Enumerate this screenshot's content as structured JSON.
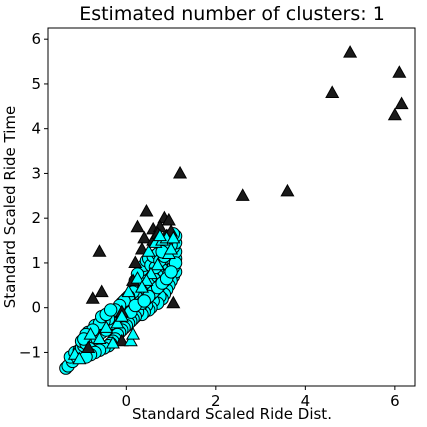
{
  "chart_data": {
    "type": "scatter",
    "title": "Estimated number of clusters: 1",
    "xlabel": "Standard Scaled Ride Dist.",
    "ylabel": "Standard Scaled Ride Time",
    "xlim": [
      -1.75,
      6.45
    ],
    "ylim": [
      -1.75,
      6.25
    ],
    "x_ticks": [
      0,
      2,
      4,
      6
    ],
    "y_ticks": [
      -1,
      0,
      1,
      2,
      3,
      4,
      5,
      6
    ],
    "grid": false,
    "colors": {
      "cluster": "#00ffff",
      "outlier": "#1a1a1a",
      "edge": "#000000"
    },
    "series": [
      {
        "marker": "circle",
        "points": [
          [
            -1.35,
            -1.35
          ],
          [
            -1.3,
            -1.3
          ],
          [
            -1.2,
            -1.2
          ],
          [
            -1.25,
            -1.1
          ],
          [
            -1.1,
            -1.1
          ],
          [
            -1.15,
            -1.0
          ],
          [
            -1.05,
            -0.95
          ],
          [
            -1.0,
            -0.9
          ],
          [
            -0.95,
            -0.85
          ],
          [
            -1.0,
            -0.75
          ],
          [
            -0.9,
            -0.8
          ],
          [
            -0.85,
            -0.7
          ],
          [
            -0.8,
            -0.75
          ],
          [
            -0.75,
            -0.65
          ],
          [
            -0.7,
            -0.6
          ],
          [
            -0.85,
            -0.55
          ],
          [
            -0.65,
            -0.7
          ],
          [
            -0.6,
            -0.5
          ],
          [
            -0.55,
            -0.55
          ],
          [
            -0.5,
            -0.45
          ],
          [
            -0.45,
            -0.5
          ],
          [
            -0.7,
            -0.4
          ],
          [
            -0.4,
            -0.4
          ],
          [
            -0.35,
            -0.3
          ],
          [
            -0.3,
            -0.35
          ],
          [
            -0.25,
            -0.2
          ],
          [
            -0.2,
            -0.25
          ],
          [
            -0.3,
            -0.1
          ],
          [
            -0.15,
            -0.1
          ],
          [
            -0.1,
            -0.15
          ],
          [
            -0.05,
            0.0
          ],
          [
            0.0,
            -0.05
          ],
          [
            -0.1,
            0.1
          ],
          [
            0.05,
            0.05
          ],
          [
            0.1,
            0.1
          ],
          [
            0.0,
            0.2
          ],
          [
            0.15,
            0.15
          ],
          [
            0.2,
            0.25
          ],
          [
            0.1,
            0.3
          ],
          [
            0.25,
            0.2
          ],
          [
            0.3,
            0.3
          ],
          [
            0.2,
            0.4
          ],
          [
            0.35,
            0.35
          ],
          [
            0.4,
            0.45
          ],
          [
            0.3,
            0.5
          ],
          [
            0.45,
            0.4
          ],
          [
            0.5,
            0.5
          ],
          [
            0.4,
            0.6
          ],
          [
            0.55,
            0.55
          ],
          [
            0.6,
            0.65
          ],
          [
            0.5,
            0.7
          ],
          [
            0.65,
            0.6
          ],
          [
            0.7,
            0.7
          ],
          [
            0.6,
            0.8
          ],
          [
            0.75,
            0.75
          ],
          [
            0.8,
            0.85
          ],
          [
            0.7,
            0.9
          ],
          [
            0.85,
            0.8
          ],
          [
            0.9,
            0.9
          ],
          [
            0.8,
            1.0
          ],
          [
            0.95,
            0.95
          ],
          [
            1.0,
            1.05
          ],
          [
            0.9,
            1.1
          ],
          [
            1.05,
            1.0
          ],
          [
            1.1,
            1.1
          ],
          [
            1.0,
            1.2
          ],
          [
            1.1,
            1.25
          ],
          [
            1.05,
            1.35
          ],
          [
            1.1,
            1.45
          ],
          [
            1.0,
            1.5
          ],
          [
            1.1,
            1.6
          ],
          [
            1.05,
            0.7
          ],
          [
            1.1,
            0.8
          ],
          [
            1.0,
            0.6
          ],
          [
            0.95,
            0.5
          ],
          [
            0.9,
            0.4
          ],
          [
            0.85,
            0.3
          ],
          [
            0.8,
            0.2
          ],
          [
            0.75,
            0.25
          ],
          [
            0.7,
            0.1
          ],
          [
            0.6,
            0.15
          ],
          [
            0.55,
            0.0
          ],
          [
            0.5,
            -0.05
          ],
          [
            0.45,
            0.05
          ],
          [
            0.4,
            -0.1
          ],
          [
            0.3,
            0.0
          ],
          [
            0.35,
            -0.15
          ],
          [
            0.25,
            -0.1
          ],
          [
            0.2,
            -0.2
          ],
          [
            0.15,
            -0.25
          ],
          [
            0.1,
            -0.3
          ],
          [
            0.05,
            -0.35
          ],
          [
            0.0,
            -0.4
          ],
          [
            -0.05,
            -0.45
          ],
          [
            -0.1,
            -0.5
          ],
          [
            -0.15,
            -0.55
          ],
          [
            -0.2,
            -0.6
          ],
          [
            -0.25,
            -0.7
          ],
          [
            -0.3,
            -0.75
          ],
          [
            -0.35,
            -0.8
          ],
          [
            -0.4,
            -0.85
          ],
          [
            -0.5,
            -0.9
          ],
          [
            -0.6,
            -0.95
          ],
          [
            -0.7,
            -1.0
          ],
          [
            -0.8,
            -1.05
          ],
          [
            -0.9,
            -1.1
          ],
          [
            0.3,
            0.7
          ],
          [
            0.35,
            0.85
          ],
          [
            0.4,
            0.95
          ],
          [
            0.45,
            1.05
          ],
          [
            0.3,
            0.55
          ],
          [
            0.2,
            0.6
          ],
          [
            0.25,
            0.75
          ],
          [
            0.5,
            1.1
          ],
          [
            0.55,
            0.95
          ],
          [
            0.65,
            0.9
          ],
          [
            0.6,
            1.15
          ],
          [
            0.7,
            1.2
          ],
          [
            0.75,
            1.05
          ],
          [
            0.85,
            1.15
          ],
          [
            0.9,
            1.25
          ],
          [
            0.95,
            1.3
          ],
          [
            1.0,
            1.4
          ],
          [
            0.95,
            1.6
          ],
          [
            1.05,
            1.65
          ],
          [
            0.9,
            1.45
          ],
          [
            0.85,
            1.35
          ],
          [
            0.8,
            1.25
          ],
          [
            0.65,
            0.4
          ],
          [
            0.75,
            0.5
          ],
          [
            0.85,
            0.6
          ],
          [
            0.95,
            0.75
          ],
          [
            1.05,
            0.9
          ],
          [
            1.1,
            1.0
          ],
          [
            0.55,
            0.3
          ],
          [
            0.45,
            0.2
          ],
          [
            0.35,
            0.1
          ],
          [
            0.15,
            0.35
          ],
          [
            0.05,
            0.25
          ],
          [
            -0.05,
            0.15
          ],
          [
            -0.15,
            0.05
          ],
          [
            -0.25,
            -0.05
          ],
          [
            -0.4,
            -0.25
          ],
          [
            -0.5,
            -0.3
          ],
          [
            -0.6,
            -0.35
          ],
          [
            -0.75,
            -0.5
          ],
          [
            -0.9,
            -0.6
          ],
          [
            -0.95,
            -0.7
          ],
          [
            -0.55,
            -0.2
          ],
          [
            -0.45,
            -0.15
          ],
          [
            -0.35,
            -0.05
          ],
          [
            0.1,
            -0.1
          ],
          [
            0.2,
            0.05
          ],
          [
            0.6,
            0.35
          ],
          [
            0.7,
            0.45
          ],
          [
            0.8,
            0.55
          ],
          [
            0.9,
            0.65
          ],
          [
            1.0,
            0.8
          ],
          [
            0.5,
            0.25
          ],
          [
            0.4,
            0.15
          ]
        ]
      },
      {
        "marker": "triangle",
        "points": [
          [
            -0.6,
            1.25
          ],
          [
            -0.75,
            0.2
          ],
          [
            -0.55,
            0.35
          ],
          [
            0.25,
            1.8
          ],
          [
            0.45,
            2.15
          ],
          [
            0.85,
            2.0
          ],
          [
            0.95,
            1.95
          ],
          [
            0.4,
            1.55
          ],
          [
            0.35,
            1.3
          ],
          [
            0.6,
            1.75
          ],
          [
            0.75,
            1.8
          ],
          [
            0.6,
            1.5
          ],
          [
            0.9,
            1.6
          ],
          [
            0.2,
            1.0
          ],
          [
            0.15,
            0.6
          ],
          [
            1.05,
            0.1
          ],
          [
            -0.1,
            -0.75
          ],
          [
            -0.1,
            -0.1
          ],
          [
            1.2,
            3.0
          ],
          [
            2.6,
            2.5
          ],
          [
            3.6,
            2.6
          ],
          [
            4.6,
            4.8
          ],
          [
            5.0,
            5.7
          ],
          [
            6.1,
            5.25
          ],
          [
            6.15,
            4.55
          ],
          [
            6.0,
            4.3
          ],
          [
            -0.85,
            -0.9
          ],
          [
            1.0,
            1.7
          ],
          [
            0.7,
            1.65
          ]
        ]
      },
      {
        "marker": "triangle",
        "points": [
          [
            -1.15,
            -1.05
          ],
          [
            -0.8,
            -0.6
          ],
          [
            -0.45,
            -0.45
          ],
          [
            -0.2,
            -0.35
          ],
          [
            0.05,
            0.35
          ],
          [
            0.25,
            0.65
          ],
          [
            0.5,
            1.25
          ],
          [
            0.65,
            1.45
          ],
          [
            0.8,
            1.5
          ],
          [
            0.9,
            1.55
          ],
          [
            0.95,
            1.2
          ],
          [
            1.0,
            1.3
          ],
          [
            0.7,
            0.95
          ],
          [
            0.55,
            0.75
          ],
          [
            0.45,
            0.6
          ],
          [
            0.35,
            0.45
          ],
          [
            -0.1,
            -0.2
          ],
          [
            -0.6,
            -0.7
          ],
          [
            -0.3,
            -0.8
          ],
          [
            -1.05,
            -1.15
          ],
          [
            0.1,
            -0.75
          ],
          [
            0.15,
            -0.6
          ],
          [
            0.75,
            1.6
          ],
          [
            1.05,
            1.55
          ]
        ]
      }
    ]
  }
}
